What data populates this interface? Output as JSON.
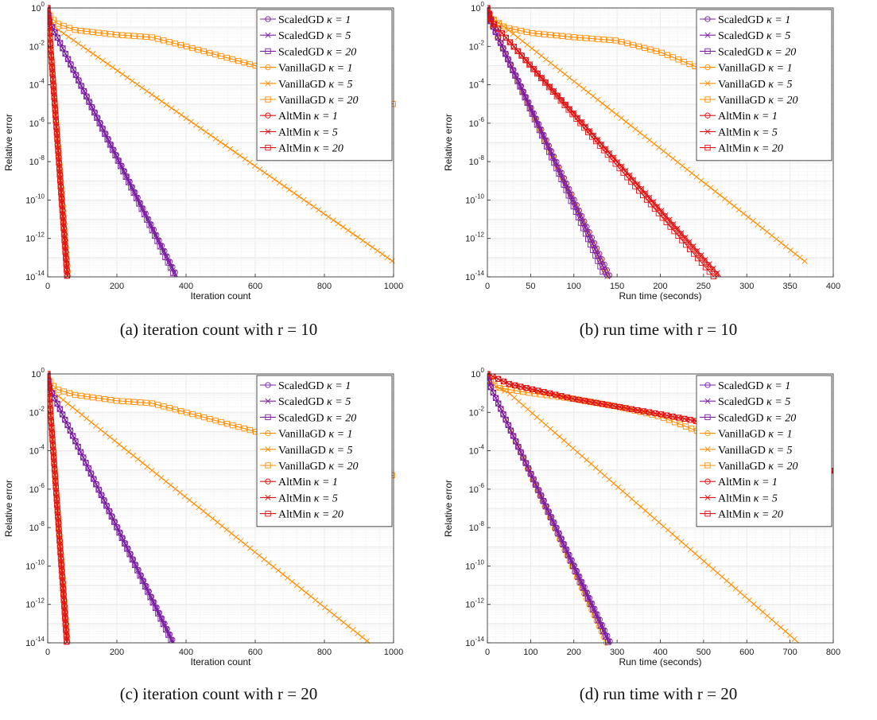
{
  "colors": {
    "ScaledGD": "#7b1fa2",
    "VanillaGD": "#ff8c00",
    "AltMin": "#e01010",
    "grid": "#e8e8e8"
  },
  "legend_template": [
    {
      "method": "ScaledGD",
      "kappa": "κ = 1",
      "marker": "circle"
    },
    {
      "method": "ScaledGD",
      "kappa": "κ = 5",
      "marker": "x"
    },
    {
      "method": "ScaledGD",
      "kappa": "κ = 20",
      "marker": "square"
    },
    {
      "method": "VanillaGD",
      "kappa": "κ = 1",
      "marker": "circle"
    },
    {
      "method": "VanillaGD",
      "kappa": "κ = 5",
      "marker": "x"
    },
    {
      "method": "VanillaGD",
      "kappa": "κ = 20",
      "marker": "square"
    },
    {
      "method": "AltMin",
      "kappa": "κ = 1",
      "marker": "circle"
    },
    {
      "method": "AltMin",
      "kappa": "κ = 5",
      "marker": "x"
    },
    {
      "method": "AltMin",
      "kappa": "κ = 20",
      "marker": "square"
    }
  ],
  "chart_data": [
    {
      "type": "line",
      "caption": "(a) iteration count with r = 10",
      "xlabel": "Iteration count",
      "ylabel": "Relative error",
      "yscale": "log",
      "xlim": [
        0,
        1000
      ],
      "ylim": [
        1e-14,
        1
      ],
      "xticks": [
        "0",
        "200",
        "400",
        "600",
        "800",
        "1000"
      ],
      "yticks": [
        "10^-14",
        "10^-12",
        "10^-10",
        "10^-8",
        "10^-6",
        "10^-4",
        "10^-2",
        "10^0"
      ],
      "grid": true,
      "legend_position": "top-right",
      "series": [
        {
          "name": "ScaledGD κ = 1",
          "x": [
            0,
            5,
            375
          ],
          "y": [
            0.8,
            0.2,
            1e-14
          ]
        },
        {
          "name": "ScaledGD κ = 5",
          "x": [
            0,
            5,
            372
          ],
          "y": [
            0.8,
            0.2,
            1e-14
          ]
        },
        {
          "name": "ScaledGD κ = 20",
          "x": [
            0,
            5,
            368
          ],
          "y": [
            0.8,
            0.2,
            1e-14
          ]
        },
        {
          "name": "VanillaGD κ = 1",
          "x": [
            0,
            3,
            60
          ],
          "y": [
            0.8,
            0.2,
            1e-14
          ]
        },
        {
          "name": "VanillaGD κ = 5",
          "x": [
            0,
            5,
            20,
            1000
          ],
          "y": [
            0.8,
            0.3,
            0.1,
            6e-14
          ]
        },
        {
          "name": "VanillaGD κ = 20",
          "x": [
            0,
            10,
            30,
            80,
            200,
            300,
            400,
            600,
            800,
            1000
          ],
          "y": [
            0.8,
            0.3,
            0.15,
            0.07,
            0.04,
            0.03,
            0.01,
            0.001,
            5e-05,
            1e-05
          ]
        },
        {
          "name": "AltMin κ = 1",
          "x": [
            0,
            3,
            58
          ],
          "y": [
            1,
            0.2,
            1e-14
          ]
        },
        {
          "name": "AltMin κ = 5",
          "x": [
            0,
            3,
            57
          ],
          "y": [
            1,
            0.2,
            1e-14
          ]
        },
        {
          "name": "AltMin κ = 20",
          "x": [
            0,
            3,
            56
          ],
          "y": [
            1,
            0.2,
            1e-14
          ]
        }
      ]
    },
    {
      "type": "line",
      "caption": "(b) run time with r = 10",
      "xlabel": "Run time (seconds)",
      "ylabel": "Relative error",
      "yscale": "log",
      "xlim": [
        0,
        400
      ],
      "ylim": [
        1e-14,
        1
      ],
      "xticks": [
        "0",
        "50",
        "100",
        "150",
        "200",
        "250",
        "300",
        "350",
        "400"
      ],
      "yticks": [
        "10^-14",
        "10^-12",
        "10^-10",
        "10^-8",
        "10^-6",
        "10^-4",
        "10^-2",
        "10^0"
      ],
      "grid": true,
      "legend_position": "top-right",
      "series": [
        {
          "name": "ScaledGD κ = 1",
          "x": [
            0,
            4,
            142
          ],
          "y": [
            0.8,
            0.2,
            1e-14
          ]
        },
        {
          "name": "ScaledGD κ = 5",
          "x": [
            0,
            4,
            139
          ],
          "y": [
            0.8,
            0.2,
            1e-14
          ]
        },
        {
          "name": "ScaledGD κ = 20",
          "x": [
            0,
            4,
            136
          ],
          "y": [
            0.8,
            0.2,
            1e-14
          ]
        },
        {
          "name": "VanillaGD κ = 1",
          "x": [
            0,
            3,
            140
          ],
          "y": [
            0.8,
            0.2,
            1e-14
          ]
        },
        {
          "name": "VanillaGD κ = 5",
          "x": [
            0,
            5,
            20,
            368
          ],
          "y": [
            0.8,
            0.3,
            0.1,
            6e-14
          ]
        },
        {
          "name": "VanillaGD κ = 20",
          "x": [
            0,
            5,
            20,
            50,
            100,
            150,
            200,
            250,
            270
          ],
          "y": [
            0.8,
            0.3,
            0.1,
            0.05,
            0.03,
            0.02,
            0.005,
            0.0006,
            0.0003
          ]
        },
        {
          "name": "AltMin κ = 1",
          "x": [
            0,
            5,
            268
          ],
          "y": [
            1,
            0.2,
            1e-14
          ]
        },
        {
          "name": "AltMin κ = 5",
          "x": [
            0,
            5,
            270
          ],
          "y": [
            1,
            0.2,
            1e-14
          ]
        },
        {
          "name": "AltMin κ = 20",
          "x": [
            0,
            5,
            262
          ],
          "y": [
            1,
            0.2,
            1e-14
          ]
        }
      ]
    },
    {
      "type": "line",
      "caption": "(c) iteration count with r = 20",
      "xlabel": "Iteration count",
      "ylabel": "Relative error",
      "yscale": "log",
      "xlim": [
        0,
        1000
      ],
      "ylim": [
        1e-14,
        1
      ],
      "xticks": [
        "0",
        "200",
        "400",
        "600",
        "800",
        "1000"
      ],
      "yticks": [
        "10^-14",
        "10^-12",
        "10^-10",
        "10^-8",
        "10^-6",
        "10^-4",
        "10^-2",
        "10^0"
      ],
      "grid": true,
      "legend_position": "top-right",
      "series": [
        {
          "name": "ScaledGD κ = 1",
          "x": [
            0,
            5,
            365
          ],
          "y": [
            0.8,
            0.2,
            1e-14
          ]
        },
        {
          "name": "ScaledGD κ = 5",
          "x": [
            0,
            5,
            362
          ],
          "y": [
            0.8,
            0.2,
            1e-14
          ]
        },
        {
          "name": "ScaledGD κ = 20",
          "x": [
            0,
            5,
            360
          ],
          "y": [
            0.8,
            0.2,
            1e-14
          ]
        },
        {
          "name": "VanillaGD κ = 1",
          "x": [
            0,
            3,
            58
          ],
          "y": [
            0.8,
            0.2,
            1e-14
          ]
        },
        {
          "name": "VanillaGD κ = 5",
          "x": [
            0,
            5,
            20,
            930
          ],
          "y": [
            0.8,
            0.3,
            0.1,
            1e-14
          ]
        },
        {
          "name": "VanillaGD κ = 20",
          "x": [
            0,
            10,
            30,
            80,
            200,
            300,
            400,
            600,
            800,
            1000
          ],
          "y": [
            0.8,
            0.3,
            0.15,
            0.08,
            0.04,
            0.03,
            0.01,
            0.001,
            8e-05,
            5e-06
          ]
        },
        {
          "name": "AltMin κ = 1",
          "x": [
            0,
            3,
            57
          ],
          "y": [
            1,
            0.2,
            1e-14
          ]
        },
        {
          "name": "AltMin κ = 5",
          "x": [
            0,
            3,
            56
          ],
          "y": [
            1,
            0.2,
            1e-14
          ]
        },
        {
          "name": "AltMin κ = 20",
          "x": [
            0,
            3,
            55
          ],
          "y": [
            1,
            0.2,
            1e-14
          ]
        }
      ]
    },
    {
      "type": "line",
      "caption": "(d) run time with r = 20",
      "xlabel": "Run time (seconds)",
      "ylabel": "Relative error",
      "yscale": "log",
      "xlim": [
        0,
        800
      ],
      "ylim": [
        1e-14,
        1
      ],
      "xticks": [
        "0",
        "100",
        "200",
        "300",
        "400",
        "500",
        "600",
        "700",
        "800"
      ],
      "yticks": [
        "10^-14",
        "10^-12",
        "10^-10",
        "10^-8",
        "10^-6",
        "10^-4",
        "10^-2",
        "10^0"
      ],
      "grid": true,
      "legend_position": "top-right",
      "series": [
        {
          "name": "ScaledGD κ = 1",
          "x": [
            0,
            8,
            285
          ],
          "y": [
            0.8,
            0.2,
            1e-14
          ]
        },
        {
          "name": "ScaledGD κ = 5",
          "x": [
            0,
            8,
            282
          ],
          "y": [
            0.8,
            0.2,
            1e-14
          ]
        },
        {
          "name": "ScaledGD κ = 20",
          "x": [
            0,
            8,
            280
          ],
          "y": [
            0.8,
            0.2,
            1e-14
          ]
        },
        {
          "name": "VanillaGD κ = 1",
          "x": [
            0,
            8,
            275
          ],
          "y": [
            0.8,
            0.2,
            1e-14
          ]
        },
        {
          "name": "VanillaGD κ = 5",
          "x": [
            0,
            10,
            50,
            720
          ],
          "y": [
            0.8,
            0.3,
            0.1,
            1e-14
          ]
        },
        {
          "name": "VanillaGD κ = 20",
          "x": [
            0,
            20,
            100,
            200,
            300,
            400,
            500,
            600
          ],
          "y": [
            0.8,
            0.2,
            0.1,
            0.05,
            0.02,
            0.006,
            0.0008,
            0.0002
          ]
        },
        {
          "name": "AltMin κ = 1",
          "x": [
            0,
            50,
            200,
            300,
            400,
            500,
            600,
            700,
            800
          ],
          "y": [
            1,
            0.3,
            0.05,
            0.02,
            0.008,
            0.003,
            0.0005,
            5e-05,
            8e-06
          ]
        },
        {
          "name": "AltMin κ = 5",
          "x": [
            0,
            50,
            200,
            300,
            400,
            500,
            600,
            700,
            800
          ],
          "y": [
            1,
            0.3,
            0.05,
            0.02,
            0.008,
            0.003,
            0.0005,
            5e-05,
            8e-06
          ]
        },
        {
          "name": "AltMin κ = 20",
          "x": [
            0,
            50,
            200,
            300,
            400,
            500,
            600,
            700,
            800
          ],
          "y": [
            1,
            0.3,
            0.05,
            0.02,
            0.008,
            0.003,
            0.0005,
            5e-05,
            8e-06
          ]
        }
      ]
    }
  ]
}
